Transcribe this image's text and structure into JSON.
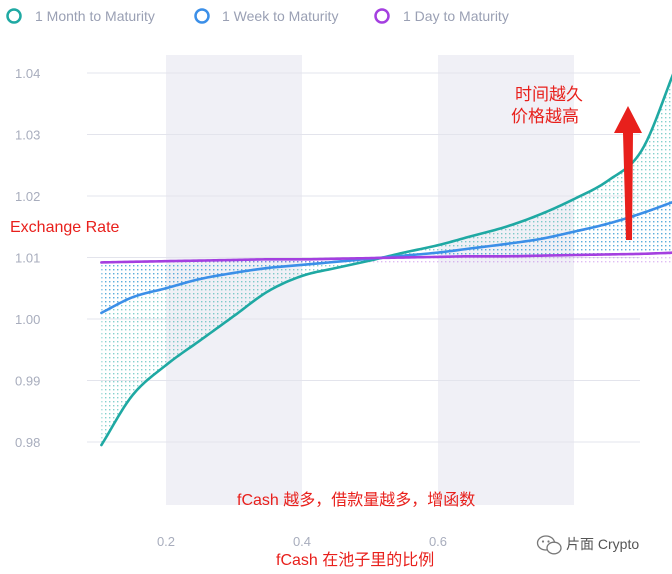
{
  "chart_data": {
    "type": "line",
    "title": "",
    "xlabel": "fCash 在池子里的比例",
    "ylabel": "Exchange Rate",
    "xlim": [
      0.1,
      0.95
    ],
    "ylim": [
      0.975,
      1.042
    ],
    "x_ticks": [
      "0.2",
      "0.4",
      "0.6"
    ],
    "x_tick_values": [
      0.2,
      0.4,
      0.6
    ],
    "y_ticks": [
      "1.04",
      "1.03",
      "1.02",
      "1.01",
      "1.00",
      "0.99",
      "0.98"
    ],
    "y_tick_values": [
      1.04,
      1.03,
      1.02,
      1.01,
      1.0,
      0.99,
      0.98
    ],
    "grid": true,
    "legend_position": "top-left",
    "shaded_bands": [
      [
        0.2,
        0.4
      ],
      [
        0.6,
        0.8
      ]
    ],
    "x": [
      0.105,
      0.15,
      0.2,
      0.25,
      0.3,
      0.35,
      0.4,
      0.45,
      0.5,
      0.55,
      0.6,
      0.65,
      0.7,
      0.75,
      0.8,
      0.85,
      0.9,
      0.95
    ],
    "series": [
      {
        "name": "1 Month to Maturity",
        "color": "#1fa9a3",
        "values": [
          0.9795,
          0.9875,
          0.9925,
          0.9965,
          1.0005,
          1.0045,
          1.007,
          1.0083,
          1.0095,
          1.0108,
          1.012,
          1.0135,
          1.015,
          1.017,
          1.0195,
          1.0225,
          1.0275,
          1.041
        ]
      },
      {
        "name": "1 Week to Maturity",
        "color": "#3b8fe8",
        "values": [
          1.001,
          1.0035,
          1.005,
          1.0065,
          1.0075,
          1.0083,
          1.0088,
          1.0093,
          1.0098,
          1.0103,
          1.0108,
          1.0115,
          1.0122,
          1.013,
          1.0142,
          1.0155,
          1.0172,
          1.0192
        ]
      },
      {
        "name": "1 Day to Maturity",
        "color": "#a43fe0",
        "values": [
          1.0092,
          1.0093,
          1.0094,
          1.0095,
          1.0096,
          1.0097,
          1.0097,
          1.0098,
          1.0099,
          1.01,
          1.0101,
          1.0102,
          1.0102,
          1.0103,
          1.0104,
          1.0105,
          1.0106,
          1.0108
        ]
      }
    ],
    "annotations": {
      "exchange_rate": "Exchange Rate",
      "top_right_line1": "时间越久",
      "top_right_line2": "价格越高",
      "bottom": "fCash 越多，借款量越多，增函数"
    },
    "arrow_color": "#e8201c",
    "watermark": "片面 Crypto"
  }
}
